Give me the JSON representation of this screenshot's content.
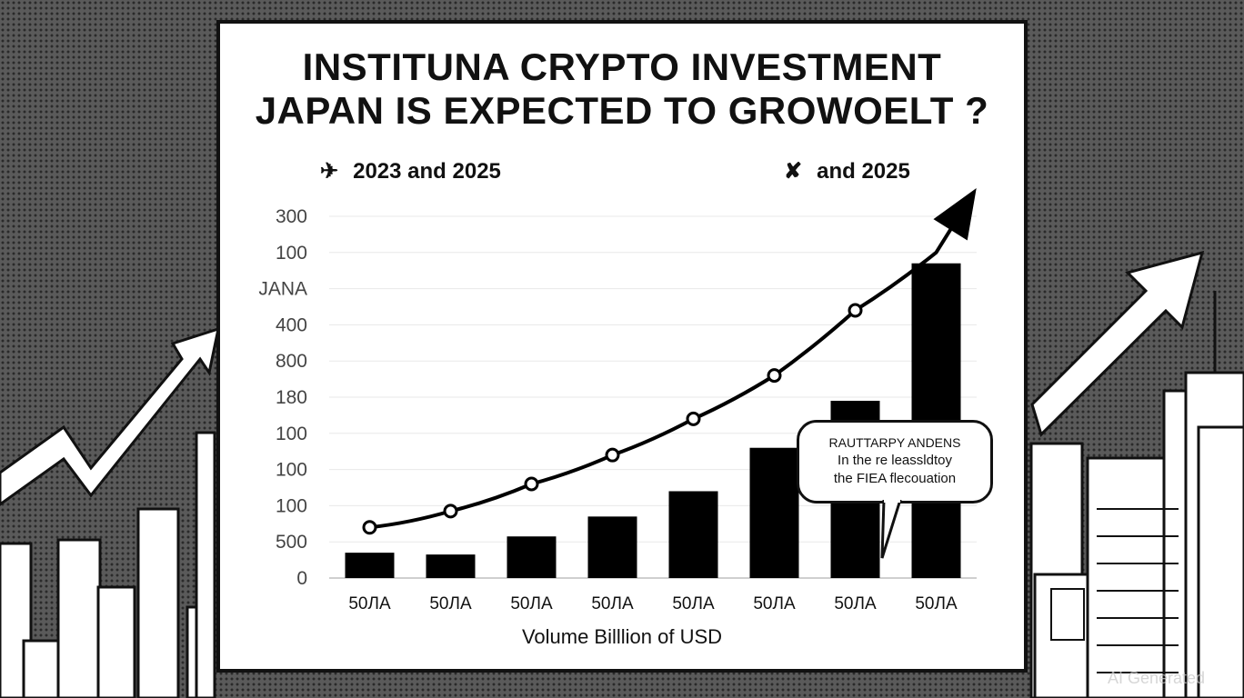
{
  "title_line1": "INSTITUNA CRYPTO INVESTMENT",
  "title_line2": "JAPAN IS EXPECTED TO GROWOELT ?",
  "subtitle_left": "2023 and 2025",
  "subtitle_right": "and 2025",
  "callout": {
    "line1": "RAUTTARPY ANDENS",
    "line2": "In the re leassldtoy",
    "line3": "the FIEA flecouation"
  },
  "watermark": "AI Generated",
  "chart_data": {
    "type": "bar",
    "title": "INSTITUNA CRYPTO INVESTMENT JAPAN IS EXPECTED TO GROWOELT ?",
    "xlabel": "Volume Billlion of USD",
    "ylabel": "",
    "y_tick_labels": [
      "0",
      "500",
      "100",
      "100",
      "100",
      "180",
      "800",
      "400",
      "JANA",
      "100",
      "300"
    ],
    "categories": [
      "50ЛА",
      "50ЛА",
      "50ЛА",
      "50ЛА",
      "50ЛА",
      "50ЛА",
      "50ЛА",
      "50ЛА"
    ],
    "values": [
      0.7,
      0.65,
      1.15,
      1.7,
      2.4,
      3.6,
      4.9,
      8.7
    ],
    "trend_line": [
      1.4,
      1.85,
      2.6,
      3.4,
      4.4,
      5.6,
      7.4,
      9.0
    ],
    "ylim": [
      0,
      10
    ],
    "grid": true,
    "legend": "none",
    "colors": {
      "bars": "#000000",
      "line": "#000000",
      "grid": "#e8e8e8"
    }
  }
}
